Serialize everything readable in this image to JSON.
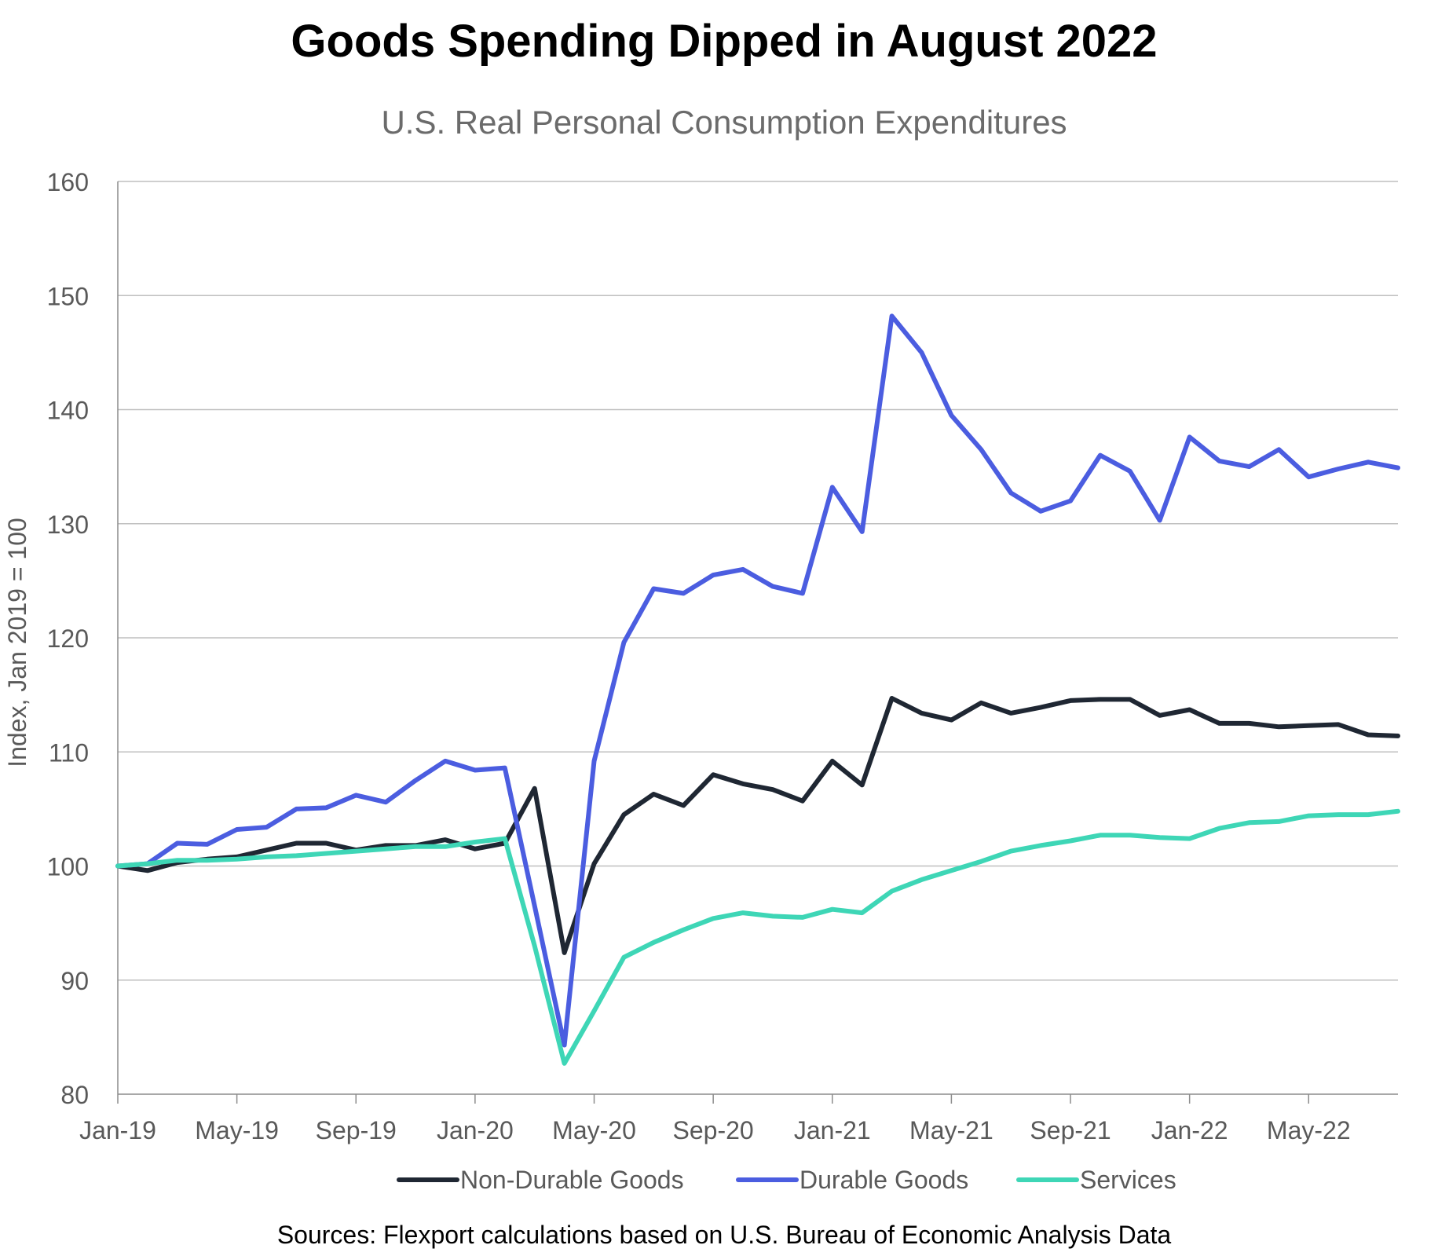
{
  "chart_data": {
    "type": "line",
    "title": "Goods Spending Dipped in August 2022",
    "subtitle": "U.S. Real Personal Consumption Expenditures",
    "xlabel": "",
    "ylabel": "Index, Jan 2019 = 100",
    "ylim": [
      80,
      160
    ],
    "yticks": [
      80,
      90,
      100,
      110,
      120,
      130,
      140,
      150,
      160
    ],
    "x": [
      "Jan-19",
      "Feb-19",
      "Mar-19",
      "Apr-19",
      "May-19",
      "Jun-19",
      "Jul-19",
      "Aug-19",
      "Sep-19",
      "Oct-19",
      "Nov-19",
      "Dec-19",
      "Jan-20",
      "Feb-20",
      "Mar-20",
      "Apr-20",
      "May-20",
      "Jun-20",
      "Jul-20",
      "Aug-20",
      "Sep-20",
      "Oct-20",
      "Nov-20",
      "Dec-20",
      "Jan-21",
      "Feb-21",
      "Mar-21",
      "Apr-21",
      "May-21",
      "Jun-21",
      "Jul-21",
      "Aug-21",
      "Sep-21",
      "Oct-21",
      "Nov-21",
      "Dec-21",
      "Jan-22",
      "Feb-22",
      "Mar-22",
      "Apr-22",
      "May-22",
      "Jun-22",
      "Jul-22",
      "Aug-22"
    ],
    "xtick_labels": [
      "Jan-19",
      "May-19",
      "Sep-19",
      "Jan-20",
      "May-20",
      "Sep-20",
      "Jan-21",
      "May-21",
      "Sep-21",
      "Jan-22",
      "May-22"
    ],
    "grid": true,
    "legend_position": "bottom",
    "series": [
      {
        "name": "Non-Durable Goods",
        "color": "#1f2733",
        "values": [
          100.0,
          99.6,
          100.3,
          100.6,
          100.8,
          101.4,
          102.0,
          102.0,
          101.4,
          101.8,
          101.8,
          102.3,
          101.5,
          102.0,
          106.8,
          92.4,
          100.2,
          104.5,
          106.3,
          105.3,
          108.0,
          107.2,
          106.7,
          105.7,
          109.2,
          107.1,
          114.7,
          113.4,
          112.8,
          114.3,
          113.4,
          113.9,
          114.5,
          114.6,
          114.6,
          113.2,
          113.7,
          112.5,
          112.5,
          112.2,
          112.3,
          112.4,
          111.5,
          111.4
        ]
      },
      {
        "name": "Durable Goods",
        "color": "#4b5de0",
        "values": [
          100.0,
          100.2,
          102.0,
          101.9,
          103.2,
          103.4,
          105.0,
          105.1,
          106.2,
          105.6,
          107.5,
          109.2,
          108.4,
          108.6,
          96.5,
          84.3,
          109.2,
          119.6,
          124.3,
          123.9,
          125.5,
          126.0,
          124.5,
          123.9,
          133.2,
          129.3,
          148.2,
          145.0,
          139.5,
          136.5,
          132.7,
          131.1,
          132.0,
          136.0,
          134.6,
          130.3,
          137.6,
          135.5,
          135.0,
          136.5,
          134.1,
          134.8,
          135.4,
          134.9
        ]
      },
      {
        "name": "Services",
        "color": "#3ed6b6",
        "values": [
          100.0,
          100.2,
          100.5,
          100.5,
          100.6,
          100.8,
          100.9,
          101.1,
          101.3,
          101.5,
          101.7,
          101.7,
          102.1,
          102.4,
          93.0,
          82.7,
          87.3,
          92.0,
          93.3,
          94.4,
          95.4,
          95.9,
          95.6,
          95.5,
          96.2,
          95.9,
          97.8,
          98.8,
          99.6,
          100.4,
          101.3,
          101.8,
          102.2,
          102.7,
          102.7,
          102.5,
          102.4,
          103.3,
          103.8,
          103.9,
          104.4,
          104.5,
          104.5,
          104.8
        ]
      }
    ],
    "source": "Sources: Flexport calculations based on U.S. Bureau of Economic Analysis Data"
  }
}
